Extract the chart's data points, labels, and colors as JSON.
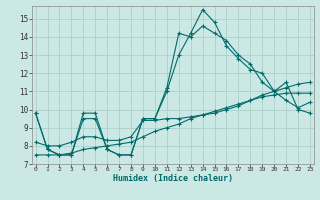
{
  "xlabel": "Humidex (Indice chaleur)",
  "bg_color": "#cce8e4",
  "grid_color": "#aacfcb",
  "line_color": "#006b6b",
  "x_ticks": [
    0,
    1,
    2,
    3,
    4,
    5,
    6,
    7,
    8,
    9,
    10,
    11,
    12,
    13,
    14,
    15,
    16,
    17,
    18,
    19,
    20,
    21,
    22,
    23
  ],
  "y_ticks": [
    7,
    8,
    9,
    10,
    11,
    12,
    13,
    14,
    15
  ],
  "xlim": [
    -0.3,
    23.3
  ],
  "ylim": [
    7.0,
    15.7
  ],
  "series": [
    [
      9.8,
      7.8,
      7.5,
      7.5,
      9.8,
      9.8,
      7.8,
      7.5,
      7.5,
      9.5,
      9.5,
      11.0,
      13.0,
      14.2,
      15.5,
      14.8,
      13.5,
      12.8,
      12.2,
      12.0,
      11.0,
      10.5,
      10.1,
      10.4
    ],
    [
      9.8,
      7.8,
      7.5,
      7.5,
      9.5,
      9.5,
      7.8,
      7.5,
      7.5,
      9.5,
      9.5,
      11.2,
      14.2,
      14.0,
      14.6,
      14.2,
      13.8,
      13.0,
      12.5,
      11.5,
      11.0,
      11.5,
      10.0,
      9.8
    ],
    [
      8.2,
      8.0,
      8.0,
      8.2,
      8.5,
      8.5,
      8.3,
      8.3,
      8.5,
      9.4,
      9.4,
      9.5,
      9.5,
      9.6,
      9.7,
      9.8,
      10.0,
      10.2,
      10.5,
      10.8,
      11.0,
      11.2,
      11.4,
      11.5
    ],
    [
      7.5,
      7.5,
      7.5,
      7.6,
      7.8,
      7.9,
      8.0,
      8.1,
      8.2,
      8.5,
      8.8,
      9.0,
      9.2,
      9.5,
      9.7,
      9.9,
      10.1,
      10.3,
      10.5,
      10.7,
      10.8,
      10.9,
      10.9,
      10.9
    ]
  ]
}
